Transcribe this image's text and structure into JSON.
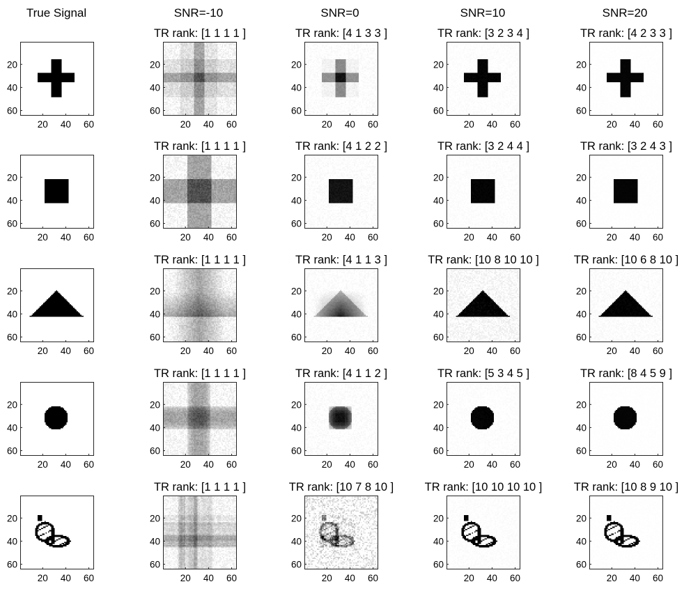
{
  "figure": {
    "columns": [
      "True Signal",
      "SNR=-10",
      "SNR=0",
      "SNR=10",
      "SNR=20"
    ]
  },
  "chart_data": {
    "type": "heatmap",
    "grid_rows": 5,
    "grid_cols": 5,
    "colormap": "gray",
    "colors": {
      "background": "#ffffff",
      "ink": "#000000",
      "axis": "#262626"
    },
    "xlim": [
      0.5,
      64.5
    ],
    "ylim": [
      0.5,
      64.5
    ],
    "y_reversed": true,
    "xticks": [
      20,
      40,
      60
    ],
    "yticks": [
      20,
      40,
      60
    ],
    "xtick_labels": [
      "20",
      "40",
      "60"
    ],
    "ytick_labels": [
      "20",
      "40",
      "60"
    ],
    "shapes": [
      "cross",
      "square",
      "triangle",
      "circle",
      "butterfly"
    ],
    "rank_labels": [
      [
        "",
        "TR rank: [1 1 1 1 ]",
        "TR rank: [4 1 3 3 ]",
        "TR rank: [3 2 3 4 ]",
        "TR rank: [4 2 3 3 ]"
      ],
      [
        "",
        "TR rank: [1 1 1 1 ]",
        "TR rank: [4 1 2 2 ]",
        "TR rank: [3 2 4 4 ]",
        "TR rank: [3 2 4 3 ]"
      ],
      [
        "",
        "TR rank: [1 1 1 1 ]",
        "TR rank: [4 1 1 3 ]",
        "TR rank: [10 8 10 10 ]",
        "TR rank: [10 6 8 10 ]"
      ],
      [
        "",
        "TR rank: [1 1 1 1 ]",
        "TR rank: [4 1 1 2 ]",
        "TR rank: [5 3 4 5 ]",
        "TR rank: [8 4 5 9 ]"
      ],
      [
        "",
        "TR rank: [1 1 1 1 ]",
        "TR rank: [10 7 8 10 ]",
        "TR rank: [10 10 10 10 ]",
        "TR rank: [10 8 9 10 ]"
      ]
    ]
  }
}
